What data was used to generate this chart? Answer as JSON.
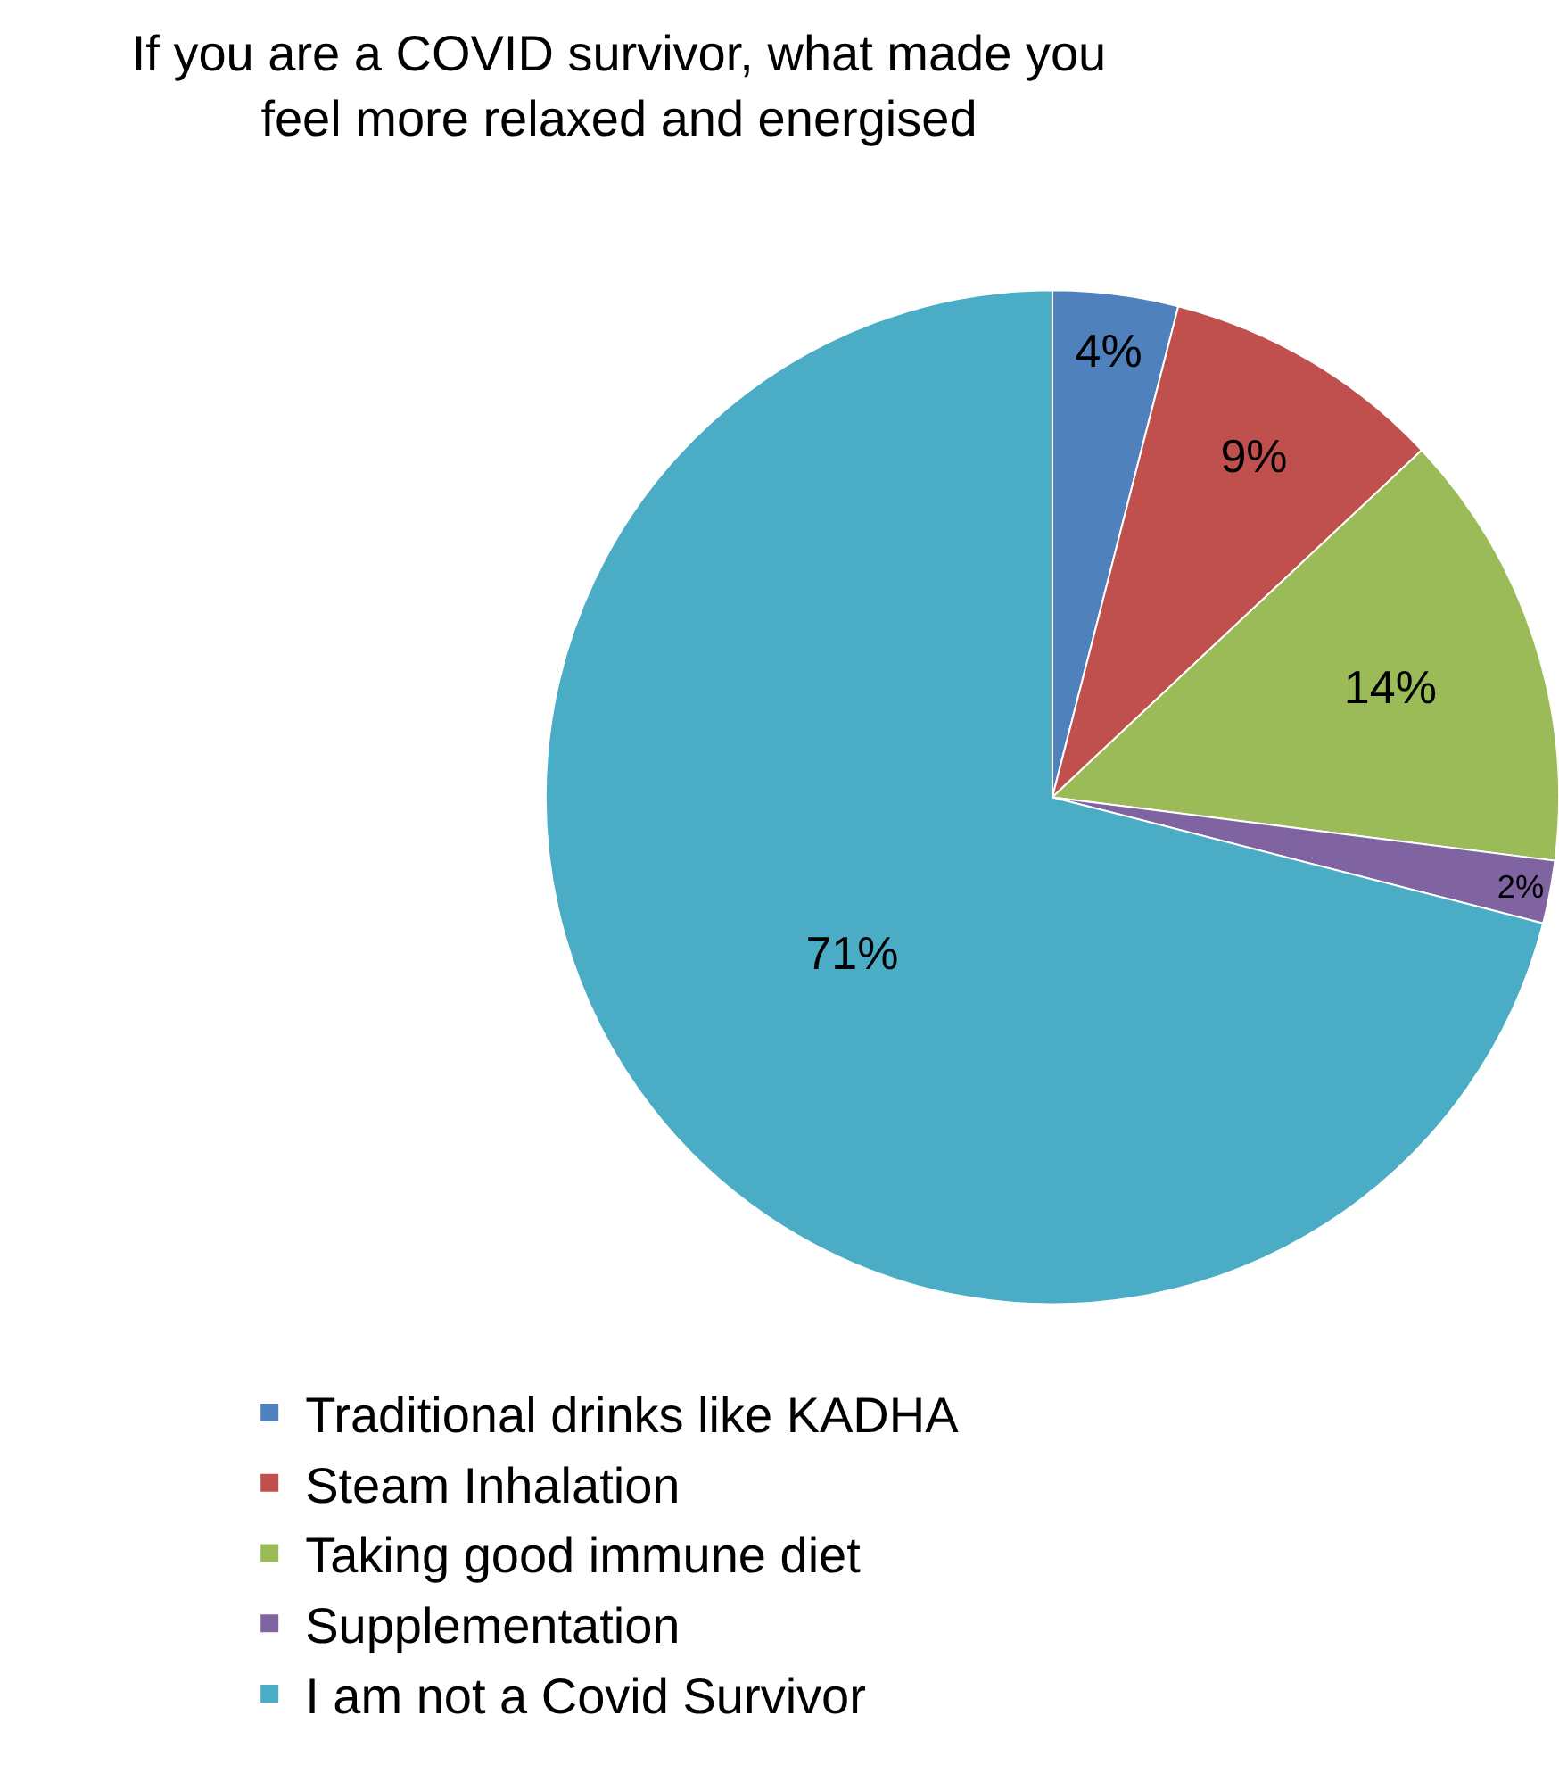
{
  "chart_data": {
    "type": "pie",
    "title": "If you are a COVID survivor, what made you feel more relaxed and energised",
    "categories": [
      "Traditional drinks like KADHA",
      "Steam Inhalation",
      "Taking good immune diet",
      "Supplementation",
      "I am not a Covid Survivor"
    ],
    "values": [
      4,
      9,
      14,
      2,
      71
    ],
    "value_labels": [
      "4%",
      "9%",
      "14%",
      "2%",
      "71%"
    ],
    "colors": [
      "#4f81bd",
      "#c0504d",
      "#9bbb59",
      "#8064a2",
      "#4bacc6"
    ],
    "legend": "bottom"
  }
}
